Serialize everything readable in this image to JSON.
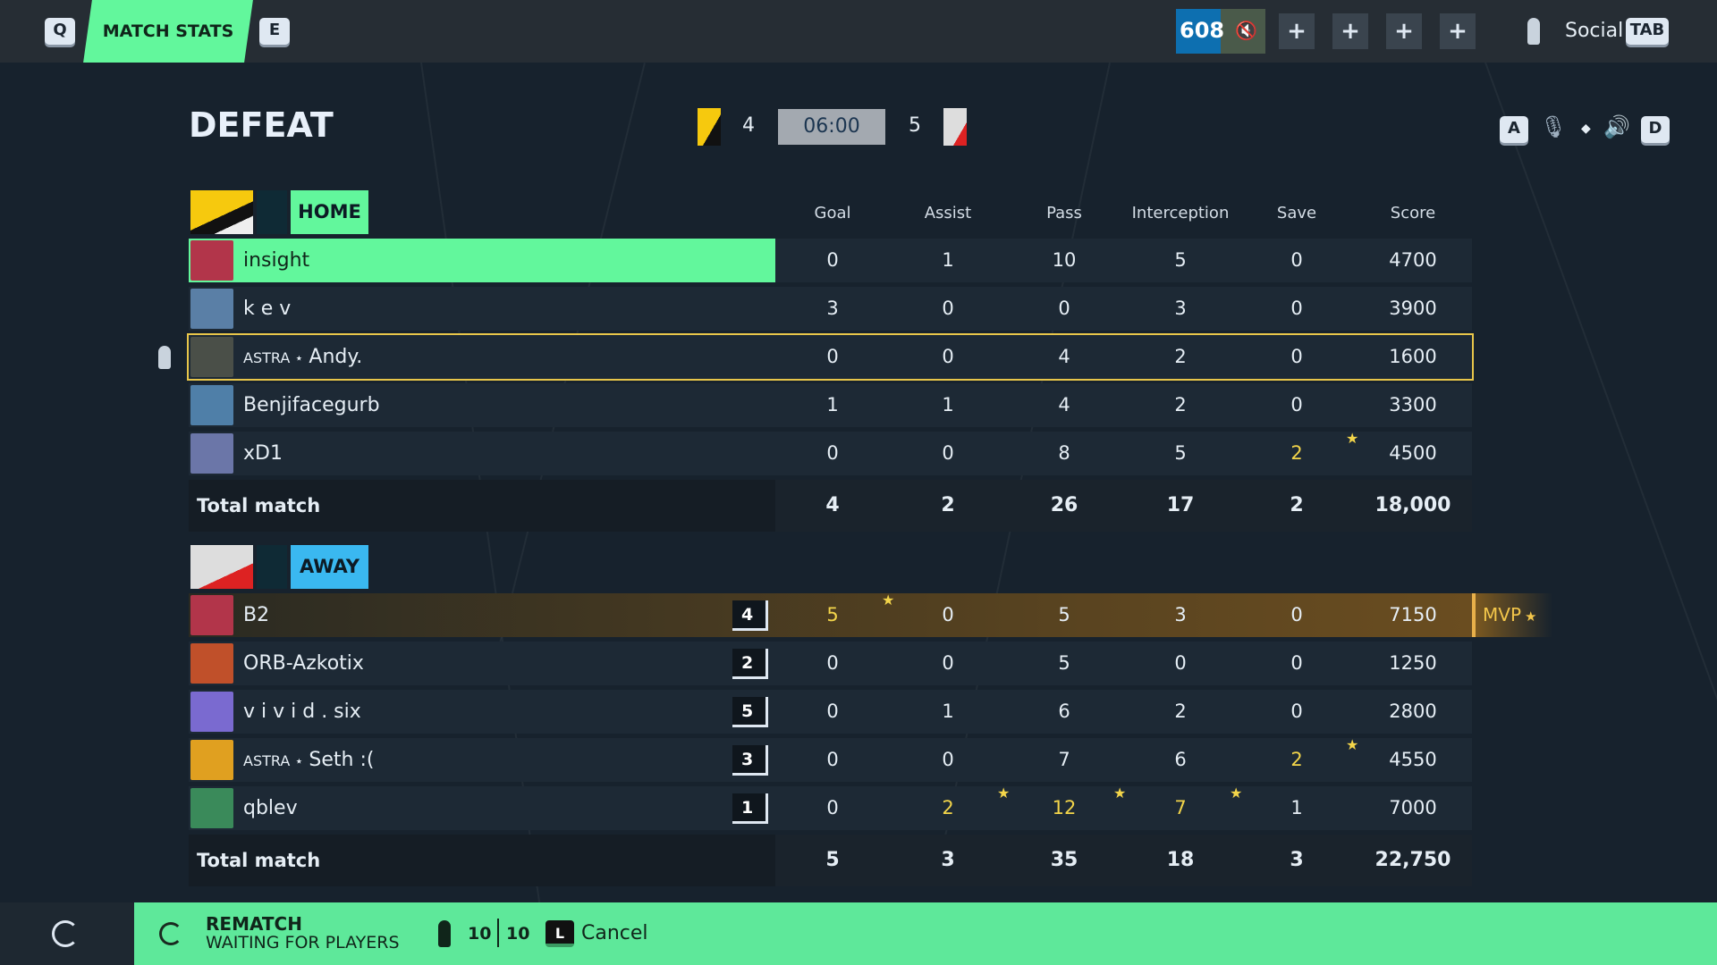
{
  "topbar": {
    "key_prev": "Q",
    "tab": "MATCH STATS",
    "key_next": "E",
    "level": "608",
    "social": "Social",
    "social_key": "TAB"
  },
  "header": {
    "result": "DEFEAT",
    "home_score": "4",
    "timer": "06:00",
    "away_score": "5",
    "key_a": "A",
    "key_d": "D"
  },
  "columns": [
    "Goal",
    "Assist",
    "Pass",
    "Interception",
    "Save",
    "Score"
  ],
  "home": {
    "label": "HOME",
    "color": "#62f79c",
    "players": [
      {
        "name": "insight",
        "stats": [
          "0",
          "1",
          "10",
          "5",
          "0",
          "4700"
        ],
        "highlight": true
      },
      {
        "name": "k e v",
        "stats": [
          "3",
          "0",
          "0",
          "3",
          "0",
          "3900"
        ]
      },
      {
        "name": "Andy.",
        "tag": "ASTRA ⋆",
        "stats": [
          "0",
          "0",
          "4",
          "2",
          "0",
          "1600"
        ],
        "selected": true
      },
      {
        "name": "Benjifacegurb",
        "stats": [
          "1",
          "1",
          "4",
          "2",
          "0",
          "3300"
        ]
      },
      {
        "name": "xD1",
        "stats": [
          "0",
          "0",
          "8",
          "5",
          "2",
          "4500"
        ],
        "best": [
          4
        ]
      }
    ],
    "total_label": "Total match",
    "totals": [
      "4",
      "2",
      "26",
      "17",
      "2",
      "18,000"
    ]
  },
  "away": {
    "label": "AWAY",
    "color": "#3ab8f0",
    "players": [
      {
        "name": "B2",
        "rank": "4",
        "stats": [
          "5",
          "0",
          "5",
          "3",
          "0",
          "7150"
        ],
        "best": [
          0
        ],
        "mvp": "MVP"
      },
      {
        "name": "ORB-Azkotix",
        "rank": "2",
        "stats": [
          "0",
          "0",
          "5",
          "0",
          "0",
          "1250"
        ]
      },
      {
        "name": "v i v i d . six",
        "rank": "5",
        "stats": [
          "0",
          "1",
          "6",
          "2",
          "0",
          "2800"
        ]
      },
      {
        "name": "Seth :(",
        "tag": "ASTRA ⋆",
        "rank": "3",
        "stats": [
          "0",
          "0",
          "7",
          "6",
          "2",
          "4550"
        ],
        "best": [
          4
        ]
      },
      {
        "name": "qblev",
        "rank": "1",
        "stats": [
          "0",
          "2",
          "12",
          "7",
          "1",
          "7000"
        ],
        "best": [
          1,
          2,
          3
        ]
      }
    ],
    "total_label": "Total match",
    "totals": [
      "5",
      "3",
      "35",
      "18",
      "3",
      "22,750"
    ]
  },
  "footer": {
    "title": "REMATCH",
    "status": "WAITING FOR PLAYERS",
    "ready": "10",
    "total": "10",
    "cancel_key": "L",
    "cancel": "Cancel"
  }
}
